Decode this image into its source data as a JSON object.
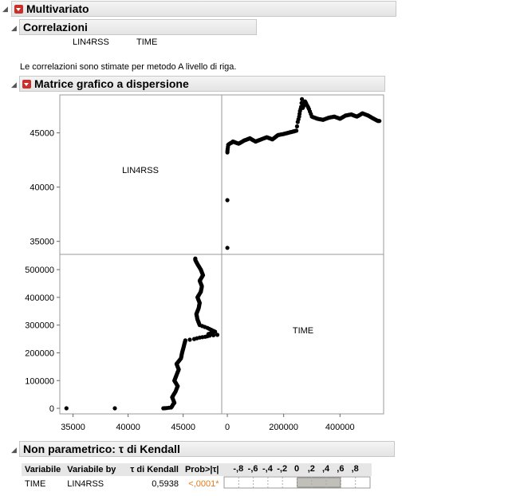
{
  "multivariate": {
    "title": "Multivariato"
  },
  "correlations": {
    "title": "Correlazioni",
    "columns": [
      "LIN4RSS",
      "TIME"
    ],
    "note": "Le correlazioni sono stimate per metodo A livello di riga."
  },
  "scatter_matrix": {
    "title": "Matrice grafico a dispersione",
    "diag_labels": [
      "LIN4RSS",
      "TIME"
    ]
  },
  "kendall": {
    "title": "Non parametrico: τ di Kendall",
    "headers": [
      "Variabile",
      "Variabile by",
      "τ di Kendall",
      "Prob>|τ|"
    ],
    "scale_labels": [
      "-,8",
      "-,6",
      "-,4",
      "-,2",
      "0",
      ",2",
      ",4",
      ",6",
      ",8"
    ],
    "row": {
      "variable": "TIME",
      "by": "LIN4RSS",
      "tau": "0,5938",
      "prob": "<,0001*",
      "tau_value": 0.5938
    },
    "colors": {
      "prob": "#e07b1a",
      "bar": "#c0c0b8"
    }
  },
  "chart_data": {
    "type": "scatter",
    "variables": [
      "LIN4RSS",
      "TIME"
    ],
    "lin4rss_ticks": [
      "35000",
      "40000",
      "45000"
    ],
    "time_ticks": [
      "0",
      "100000",
      "200000",
      "300000",
      "400000",
      "500000"
    ],
    "time_ticks_x": [
      "0",
      "200000",
      "400000"
    ],
    "x_bottom_ticks": [
      "35000",
      "40000",
      "45000"
    ],
    "lin4rss_range": [
      33800,
      48500
    ],
    "time_range": [
      -20000,
      555000
    ],
    "points": [
      [
        34400,
        0
      ],
      [
        43200,
        0
      ],
      [
        43500,
        1000
      ],
      [
        43900,
        3000
      ],
      [
        44000,
        8000
      ],
      [
        44100,
        15000
      ],
      [
        44200,
        20000
      ],
      [
        44000,
        40000
      ],
      [
        44300,
        60000
      ],
      [
        44500,
        80000
      ],
      [
        44200,
        100000
      ],
      [
        44600,
        140000
      ],
      [
        44400,
        160000
      ],
      [
        44800,
        180000
      ],
      [
        44900,
        200000
      ],
      [
        45000,
        215000
      ],
      [
        45100,
        230000
      ],
      [
        45200,
        245000
      ],
      [
        46000,
        250000
      ],
      [
        46500,
        255000
      ],
      [
        47000,
        258000
      ],
      [
        47400,
        262000
      ],
      [
        48100,
        265000
      ],
      [
        47300,
        268000
      ],
      [
        47600,
        272000
      ],
      [
        47900,
        276000
      ],
      [
        47700,
        280000
      ],
      [
        47200,
        290000
      ],
      [
        46500,
        300000
      ],
      [
        46300,
        320000
      ],
      [
        46200,
        340000
      ],
      [
        46400,
        360000
      ],
      [
        46500,
        380000
      ],
      [
        46300,
        400000
      ],
      [
        46600,
        420000
      ],
      [
        46700,
        440000
      ],
      [
        46500,
        460000
      ],
      [
        46800,
        480000
      ],
      [
        46600,
        500000
      ],
      [
        46300,
        520000
      ],
      [
        46100,
        535000
      ],
      [
        46100,
        540000
      ]
    ]
  }
}
